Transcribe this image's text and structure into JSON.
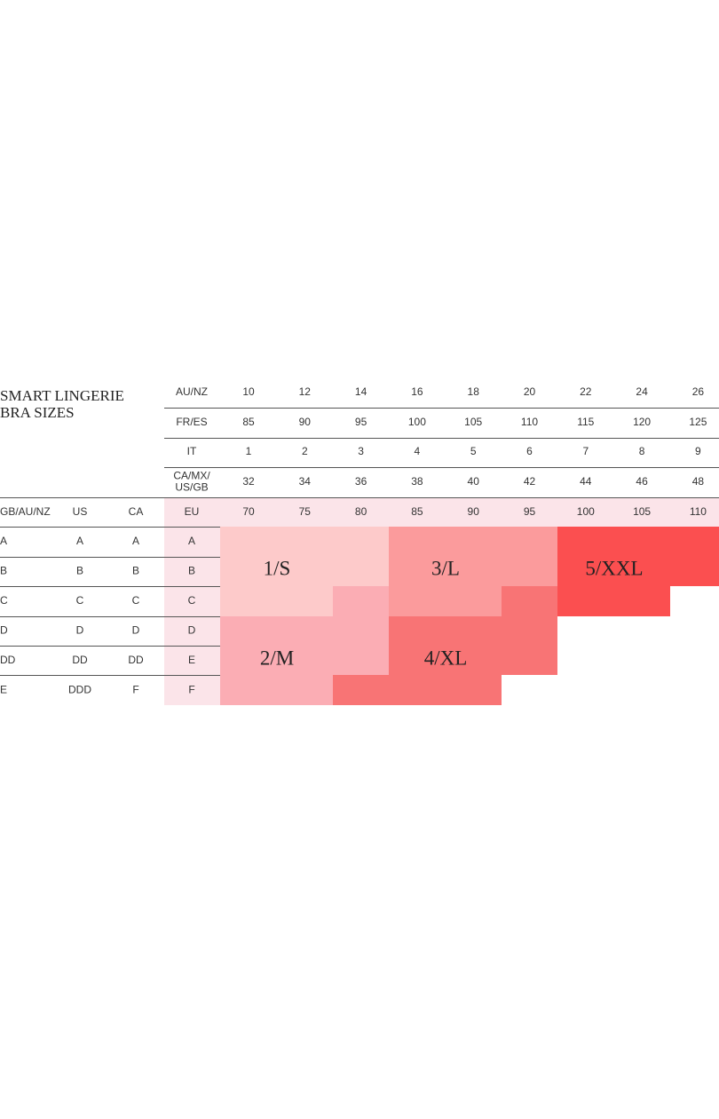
{
  "title": [
    "SMART LINGERIE",
    "BRA SIZES"
  ],
  "band_rows": [
    {
      "label": [
        "AU/NZ"
      ],
      "values": [
        10,
        12,
        14,
        16,
        18,
        20,
        22,
        24,
        26
      ]
    },
    {
      "label": [
        "FR/ES"
      ],
      "values": [
        85,
        90,
        95,
        100,
        105,
        110,
        115,
        120,
        125
      ]
    },
    {
      "label": [
        "IT"
      ],
      "values": [
        1,
        2,
        3,
        4,
        5,
        6,
        7,
        8,
        9
      ]
    },
    {
      "label": [
        "CA/MX/",
        "US/GB"
      ],
      "values": [
        32,
        34,
        36,
        38,
        40,
        42,
        44,
        46,
        48
      ]
    },
    {
      "label": [
        "EU"
      ],
      "values": [
        70,
        75,
        80,
        85,
        90,
        95,
        100,
        105,
        110
      ]
    }
  ],
  "cup_headers": [
    "GB/AU/NZ",
    "US",
    "CA"
  ],
  "cup_rows": [
    [
      "A",
      "A",
      "A",
      "A"
    ],
    [
      "B",
      "B",
      "B",
      "B"
    ],
    [
      "C",
      "C",
      "C",
      "C"
    ],
    [
      "D",
      "D",
      "D",
      "D"
    ],
    [
      "DD",
      "DD",
      "DD",
      "E"
    ],
    [
      "E",
      "DDD",
      "F",
      "F"
    ]
  ],
  "sizes": [
    "1/S",
    "2/M",
    "3/L",
    "4/XL",
    "5/XXL"
  ]
}
